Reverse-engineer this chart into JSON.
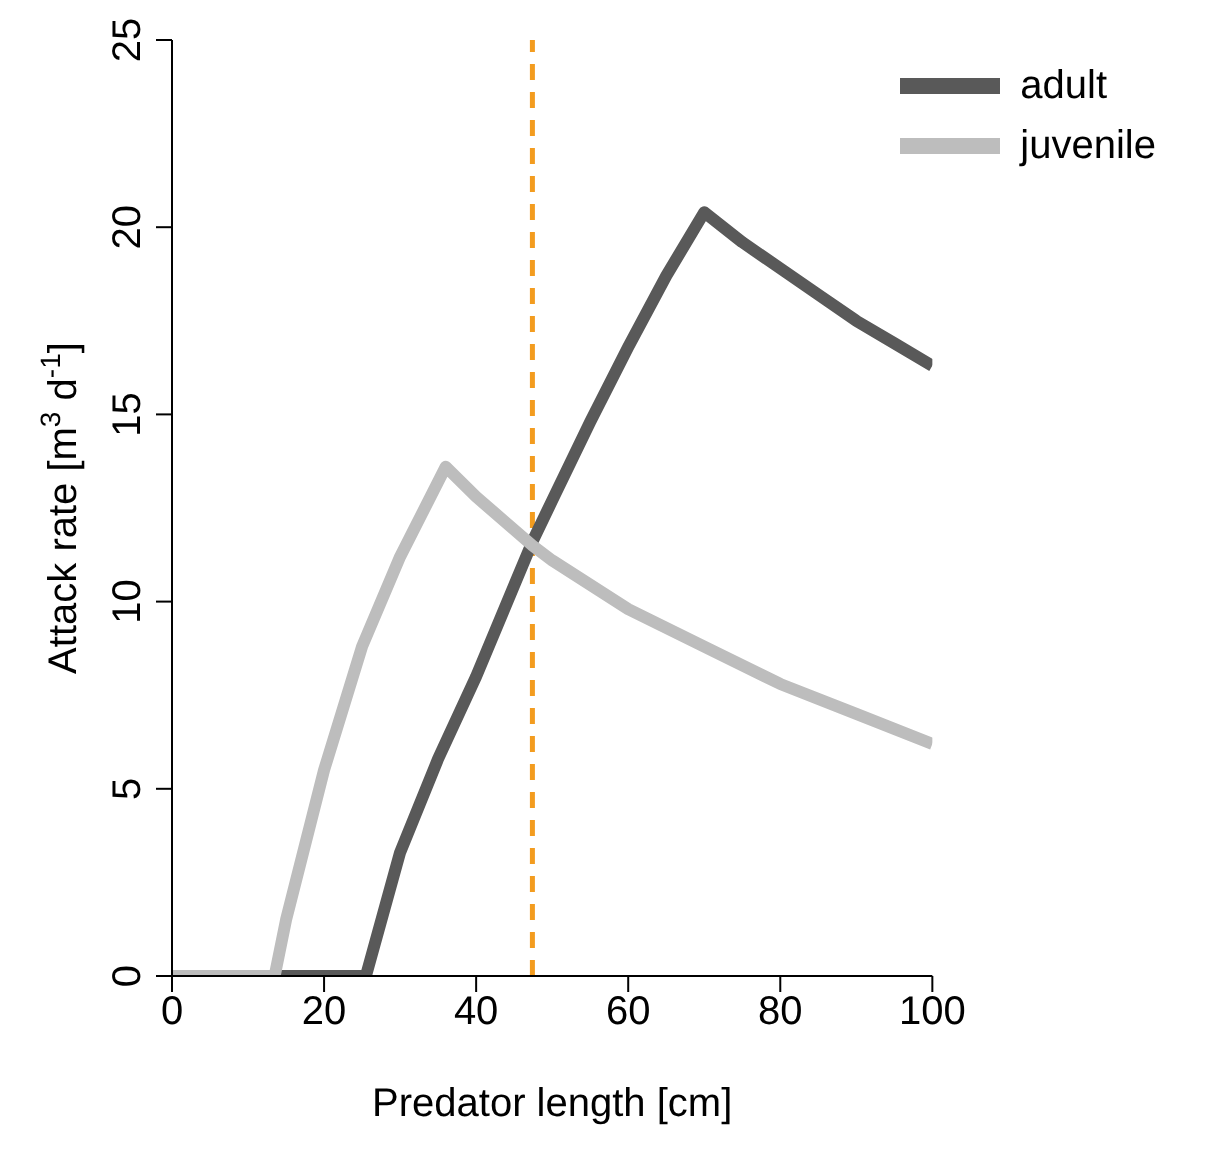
{
  "chart_data": {
    "type": "line",
    "xlabel": "Predator length [cm]",
    "ylabel": "Attack rate [m$^{3}$ d$^{-1}$]",
    "series": [
      {
        "name": "adult",
        "color": "#595959",
        "x": [
          0,
          25.5,
          30,
          35,
          40,
          47.4,
          50,
          55,
          60,
          65,
          70,
          75,
          80,
          85,
          90,
          95,
          100
        ],
        "values": [
          0,
          0,
          3.3,
          5.8,
          8.0,
          11.6,
          12.7,
          14.8,
          16.8,
          18.7,
          20.4,
          19.6,
          18.9,
          18.2,
          17.5,
          16.9,
          16.3
        ]
      },
      {
        "name": "juvenile",
        "color": "#bdbdbd",
        "x": [
          0,
          13.5,
          15,
          20,
          25,
          30,
          36,
          40,
          47.4,
          50,
          60,
          70,
          80,
          90,
          100
        ],
        "values": [
          0,
          0,
          1.5,
          5.5,
          8.8,
          11.2,
          13.6,
          12.8,
          11.5,
          11.1,
          9.8,
          8.8,
          7.8,
          7.0,
          6.2
        ]
      }
    ],
    "xlim": [
      0,
      100
    ],
    "xticks": [
      0,
      20,
      40,
      60,
      80,
      100
    ],
    "ylim": [
      0,
      25
    ],
    "yticks": [
      0,
      5,
      10,
      15,
      20,
      25
    ],
    "ref_lines": [
      {
        "axis": "x",
        "value": 47.4,
        "color": "#f39c1f",
        "line_style": "dashed"
      }
    ],
    "legend": "top right",
    "grid": false,
    "marker": "none",
    "line_style": "solid"
  }
}
